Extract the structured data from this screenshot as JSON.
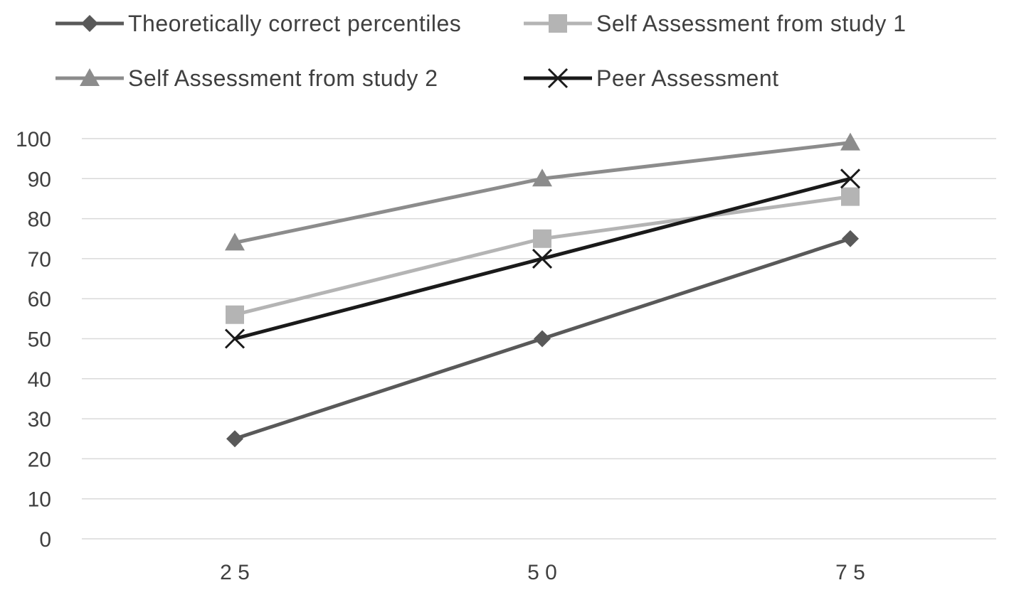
{
  "chart_data": {
    "type": "line",
    "categories": [
      "25",
      "50",
      "75"
    ],
    "x_tick_labels": [
      "2 5",
      "5 0",
      "7 5"
    ],
    "ylim": [
      0,
      100
    ],
    "yticks": [
      0,
      10,
      20,
      30,
      40,
      50,
      60,
      70,
      80,
      90,
      100
    ],
    "grid": true,
    "legend_position": "top",
    "series": [
      {
        "name": "Theoretically correct percentiles",
        "values": [
          25,
          50,
          75
        ],
        "marker": "diamond",
        "color": "#595959"
      },
      {
        "name": "Self Assessment from study 1",
        "values": [
          56,
          75,
          85.5
        ],
        "marker": "square",
        "color": "#b4b4b4"
      },
      {
        "name": "Self Assessment from study 2",
        "values": [
          74,
          90,
          99
        ],
        "marker": "triangle",
        "color": "#8c8c8c"
      },
      {
        "name": "Peer Assessment",
        "values": [
          50,
          70,
          90
        ],
        "marker": "x",
        "color": "#1a1a1a"
      }
    ]
  }
}
